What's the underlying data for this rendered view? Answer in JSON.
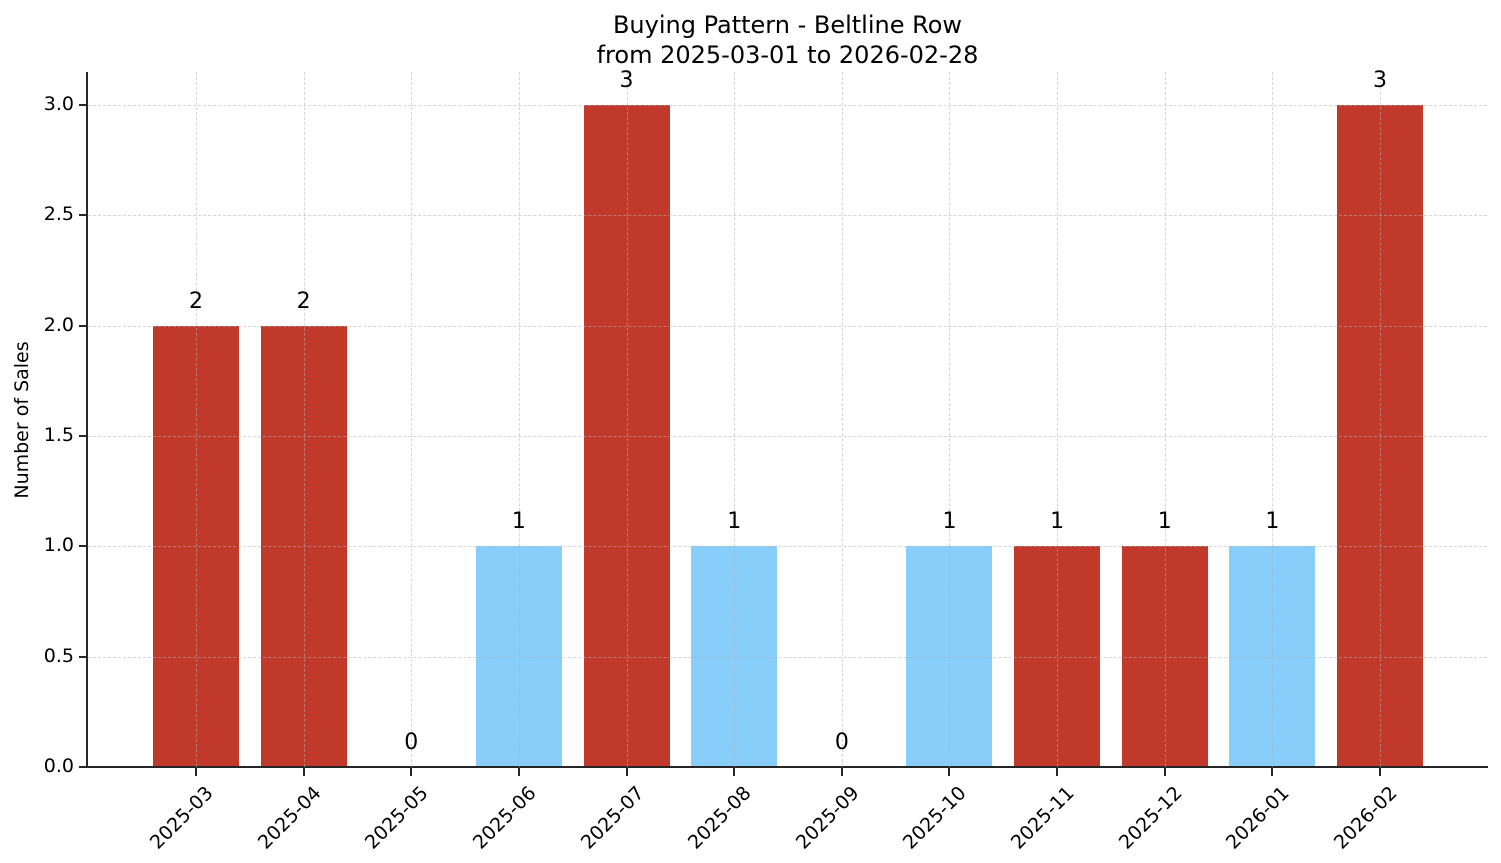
{
  "figure": {
    "title": "Buying Pattern - Beltline Row",
    "subtitle": "from 2025-03-01 to 2026-02-28",
    "ylabel": "Number of Sales"
  },
  "chart_data": {
    "type": "bar",
    "title": "Buying Pattern - Beltline Row\nfrom 2025-03-01 to 2026-02-28",
    "xlabel": "",
    "ylabel": "Number of Sales",
    "categories": [
      "2025-03",
      "2025-04",
      "2025-05",
      "2025-06",
      "2025-07",
      "2025-08",
      "2025-09",
      "2025-10",
      "2025-11",
      "2025-12",
      "2026-01",
      "2026-02"
    ],
    "values": [
      2,
      2,
      0,
      1,
      3,
      1,
      0,
      1,
      1,
      1,
      1,
      3
    ],
    "bar_labels": [
      "2",
      "2",
      "0",
      "1",
      "3",
      "1",
      "0",
      "1",
      "1",
      "1",
      "1",
      "3"
    ],
    "bar_colors": [
      "#c0392b",
      "#c0392b",
      null,
      "#87CEFA",
      "#c0392b",
      "#87CEFA",
      null,
      "#87CEFA",
      "#c0392b",
      "#c0392b",
      "#87CEFA",
      "#c0392b"
    ],
    "ytick_labels": [
      "0.0",
      "0.5",
      "1.0",
      "1.5",
      "2.0",
      "2.5",
      "3.0"
    ],
    "ytick_values": [
      0.0,
      0.5,
      1.0,
      1.5,
      2.0,
      2.5,
      3.0
    ],
    "ylim": [
      0,
      3.15
    ],
    "grid": "dashed, both axes, drawn over bars",
    "legend": "none",
    "colors": {
      "bar_red": "#c0392b",
      "bar_blue": "#87CEFA",
      "axis": "#262626",
      "text": "#000000"
    }
  }
}
